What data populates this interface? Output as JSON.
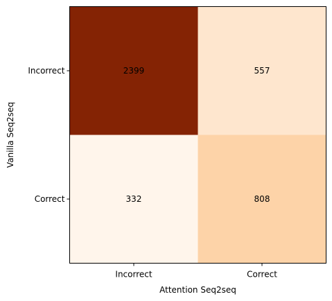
{
  "chart_data": {
    "type": "heatmap",
    "title": "",
    "xlabel": "Attention Seq2seq",
    "ylabel": "Vanilla Seq2seq",
    "x_categories": [
      "Incorrect",
      "Correct"
    ],
    "y_categories": [
      "Incorrect",
      "Correct"
    ],
    "values": [
      [
        2399,
        557
      ],
      [
        332,
        808
      ]
    ],
    "colormap": "Oranges",
    "colors": {
      "cell_0_0": "#842304",
      "cell_0_1": "#fee6ce",
      "cell_1_0": "#fff5eb",
      "cell_1_1": "#fdd3a8",
      "frame": "#000000"
    },
    "grid": false,
    "legend": "none"
  }
}
